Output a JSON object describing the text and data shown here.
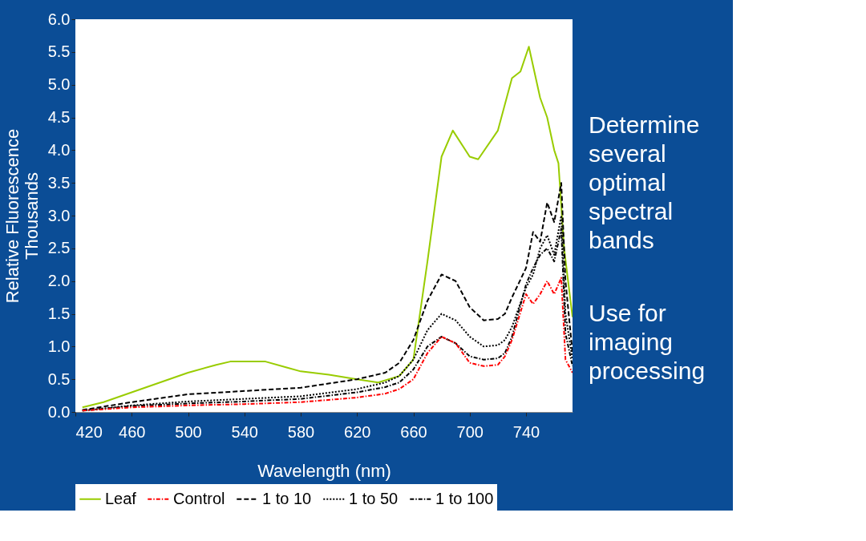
{
  "chart_data": {
    "type": "line",
    "xlabel": "Wavelength (nm)",
    "ylabel": "Relative Fluorescence",
    "xlim": [
      420,
      773
    ],
    "xticks": [
      420,
      460,
      500,
      540,
      580,
      620,
      660,
      700,
      740
    ],
    "ylim": [
      0,
      6
    ],
    "yticks": [
      {
        "value": 0,
        "label": "0.0"
      },
      0.5,
      {
        "value": 1,
        "label": "1.0"
      },
      1.5,
      {
        "value": 2,
        "label": "2.0"
      },
      2.5,
      {
        "value": 3,
        "label": "3.0"
      },
      3.5,
      {
        "value": 4,
        "label": "4.0"
      },
      4.5,
      {
        "value": 5,
        "label": "5.0"
      },
      5.5,
      {
        "value": 6,
        "label": "6.0"
      }
    ],
    "grid": false,
    "legend": "bottom",
    "marker": "none",
    "annotations": [
      "Thousands",
      "Determine several optimal spectral bands",
      "Use for imaging processing"
    ],
    "series": [
      {
        "name": "Leaf",
        "color": "#99cc00",
        "line_style": "solid",
        "x": [
          425,
          440,
          460,
          480,
          500,
          520,
          530,
          555,
          570,
          580,
          600,
          620,
          635,
          650,
          660,
          670,
          680,
          688,
          700,
          706,
          720,
          730,
          736,
          742,
          750,
          755,
          760,
          763,
          767,
          773
        ],
        "values": [
          0.07,
          0.15,
          0.3,
          0.45,
          0.6,
          0.72,
          0.77,
          0.77,
          0.68,
          0.62,
          0.57,
          0.5,
          0.45,
          0.55,
          0.8,
          2.3,
          3.9,
          4.3,
          3.9,
          3.86,
          4.3,
          5.1,
          5.2,
          5.58,
          4.8,
          4.5,
          4.0,
          3.8,
          2.5,
          1.45
        ]
      },
      {
        "name": "Control",
        "color": "#ff0000",
        "line_style": "dashdot",
        "x": [
          425,
          460,
          500,
          540,
          580,
          620,
          640,
          650,
          660,
          670,
          680,
          690,
          700,
          710,
          720,
          725,
          730,
          740,
          745,
          750,
          755,
          760,
          765,
          768,
          773
        ],
        "values": [
          0.02,
          0.07,
          0.1,
          0.12,
          0.15,
          0.22,
          0.28,
          0.35,
          0.5,
          0.9,
          1.15,
          1.05,
          0.75,
          0.7,
          0.72,
          0.85,
          1.1,
          1.8,
          1.65,
          1.8,
          2.0,
          1.8,
          2.05,
          0.8,
          0.6
        ]
      },
      {
        "name": "1 to 10",
        "color": "#000000",
        "line_style": "dashed",
        "x": [
          425,
          460,
          500,
          540,
          580,
          620,
          640,
          650,
          660,
          670,
          680,
          690,
          700,
          710,
          720,
          725,
          730,
          740,
          745,
          750,
          755,
          760,
          765,
          768,
          773
        ],
        "values": [
          0.03,
          0.15,
          0.27,
          0.32,
          0.37,
          0.5,
          0.6,
          0.75,
          1.1,
          1.7,
          2.1,
          2.0,
          1.6,
          1.4,
          1.42,
          1.5,
          1.75,
          2.2,
          2.75,
          2.6,
          3.2,
          2.9,
          3.5,
          2.0,
          0.9
        ]
      },
      {
        "name": "1 to 50",
        "color": "#000000",
        "line_style": "dotted",
        "x": [
          425,
          460,
          500,
          540,
          580,
          620,
          640,
          650,
          660,
          670,
          680,
          690,
          700,
          710,
          720,
          725,
          730,
          740,
          745,
          750,
          755,
          760,
          765,
          768,
          773
        ],
        "values": [
          0.02,
          0.1,
          0.16,
          0.2,
          0.24,
          0.35,
          0.45,
          0.55,
          0.8,
          1.25,
          1.5,
          1.4,
          1.15,
          1.0,
          1.02,
          1.1,
          1.3,
          1.9,
          2.1,
          2.5,
          2.7,
          2.4,
          3.0,
          1.5,
          0.8
        ]
      },
      {
        "name": "1 to 100",
        "color": "#000000",
        "line_style": "dashdot",
        "x": [
          425,
          460,
          500,
          540,
          580,
          620,
          640,
          650,
          660,
          670,
          680,
          690,
          700,
          710,
          720,
          725,
          730,
          740,
          745,
          750,
          755,
          760,
          765,
          768,
          773
        ],
        "values": [
          0.02,
          0.09,
          0.13,
          0.16,
          0.2,
          0.3,
          0.38,
          0.45,
          0.65,
          1.0,
          1.15,
          1.05,
          0.85,
          0.8,
          0.82,
          0.9,
          1.15,
          1.95,
          2.2,
          2.4,
          2.5,
          2.3,
          2.8,
          1.2,
          0.7
        ]
      }
    ]
  }
}
